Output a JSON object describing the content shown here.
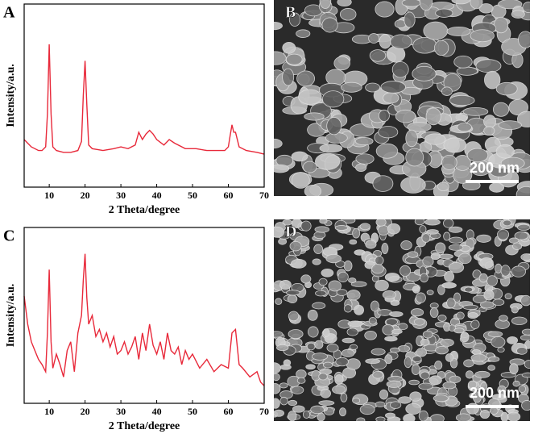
{
  "chart_data": [
    {
      "type": "line",
      "panel_label": "A",
      "xlabel": "2 Theta/degree",
      "ylabel": "Intensity/a.u.",
      "x": [
        3,
        5,
        7,
        8,
        9,
        9.5,
        10,
        10.5,
        11,
        12,
        14,
        16,
        18,
        19,
        19.5,
        20,
        20.5,
        21,
        22,
        25,
        28,
        30,
        32,
        34,
        35,
        36,
        37,
        38,
        39,
        40,
        42,
        43.5,
        45,
        48,
        51,
        54,
        57,
        59,
        60,
        60.5,
        61,
        61.5,
        62,
        63,
        65,
        68,
        70
      ],
      "series": [
        {
          "color": "#e8293a",
          "values": [
            26,
            22,
            20,
            20,
            22,
            40,
            78,
            40,
            22,
            20,
            19,
            19,
            20,
            25,
            50,
            69,
            45,
            23,
            21,
            20,
            21,
            22,
            21,
            23,
            30,
            26,
            29,
            31,
            29,
            26,
            23,
            26,
            24,
            21,
            21,
            20,
            20,
            20,
            22,
            28,
            34,
            30,
            30,
            22,
            20,
            19,
            18
          ]
        }
      ],
      "xlim": [
        3,
        70
      ],
      "ylim": [
        0,
        100
      ],
      "xticks": [
        10,
        20,
        30,
        40,
        50,
        60,
        70
      ]
    },
    {
      "type": "line",
      "panel_label": "C",
      "xlabel": "2 Theta/degree",
      "ylabel": "Intensity/a.u.",
      "x": [
        3,
        4,
        5,
        6,
        7,
        8,
        9,
        9.5,
        10,
        10.5,
        11,
        12,
        13,
        14,
        15,
        16,
        17,
        18,
        19,
        19.5,
        20,
        20.5,
        21,
        22,
        23,
        24,
        25,
        26,
        27,
        28,
        29,
        30,
        31,
        32,
        33,
        34,
        35,
        36,
        37,
        38,
        39,
        40,
        41,
        42,
        43,
        44,
        45,
        46,
        47,
        48,
        49,
        50,
        52,
        54,
        56,
        58,
        60,
        61,
        62,
        63,
        64,
        66,
        68,
        69,
        70
      ],
      "series": [
        {
          "color": "#e8293a",
          "values": [
            61,
            45,
            35,
            30,
            25,
            22,
            18,
            40,
            76,
            35,
            20,
            28,
            22,
            15,
            30,
            35,
            18,
            40,
            50,
            70,
            85,
            60,
            45,
            50,
            38,
            42,
            35,
            40,
            32,
            38,
            28,
            30,
            35,
            28,
            32,
            38,
            25,
            40,
            30,
            45,
            33,
            28,
            35,
            25,
            40,
            30,
            28,
            32,
            22,
            30,
            25,
            28,
            20,
            25,
            18,
            22,
            20,
            40,
            42,
            22,
            20,
            15,
            18,
            12,
            10
          ]
        }
      ],
      "xlim": [
        3,
        70
      ],
      "ylim": [
        0,
        100
      ],
      "xticks": [
        10,
        20,
        30,
        40,
        50,
        60,
        70
      ]
    }
  ],
  "images": [
    {
      "panel_label": "B",
      "scale_bar": "200 nm"
    },
    {
      "panel_label": "D",
      "scale_bar": "200 nm"
    }
  ]
}
